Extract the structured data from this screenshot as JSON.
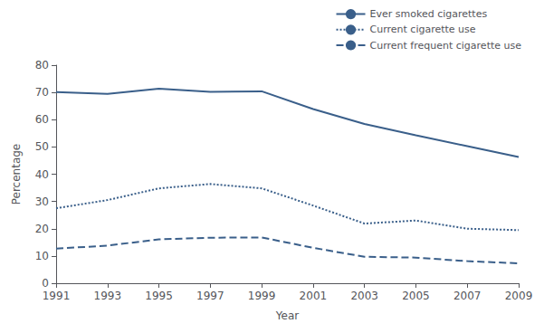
{
  "chart_data": {
    "type": "line",
    "xlabel": "Year",
    "ylabel": "Percentage",
    "categories": [
      "1991",
      "1993",
      "1995",
      "1997",
      "1999",
      "2001",
      "2003",
      "2005",
      "2007",
      "2009"
    ],
    "series": [
      {
        "name": "Ever smoked cigarettes",
        "color": "#3a5f8a",
        "line_style": "solid",
        "values": [
          70.1,
          69.5,
          71.4,
          70.2,
          70.4,
          63.9,
          58.4,
          54.3,
          50.3,
          46.3
        ]
      },
      {
        "name": "Current cigarette use",
        "color": "#3a5f8a",
        "line_style": "dotted",
        "values": [
          27.5,
          30.5,
          34.8,
          36.4,
          34.8,
          28.5,
          21.9,
          23.0,
          20.0,
          19.5
        ]
      },
      {
        "name": "Current frequent cigarette use",
        "color": "#3a5f8a",
        "line_style": "dashed",
        "values": [
          12.7,
          13.8,
          16.1,
          16.7,
          16.8,
          13.0,
          9.7,
          9.4,
          8.1,
          7.3
        ]
      }
    ],
    "ylim": [
      0,
      80
    ],
    "yticks": [
      0,
      10,
      20,
      30,
      40,
      50,
      60,
      70,
      80
    ],
    "grid": false,
    "legend": "upper right"
  }
}
